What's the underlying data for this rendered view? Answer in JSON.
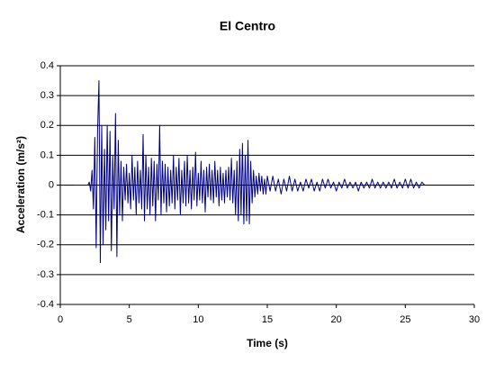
{
  "chart_data": {
    "type": "line",
    "title": "El Centro",
    "x_label": "Time (s)",
    "y_label": "Acceleration (m/s²)",
    "color": "#000080",
    "grid": true,
    "xlim": [
      0,
      30
    ],
    "xticks": [
      0,
      5,
      10,
      15,
      20,
      25,
      30
    ],
    "ylim": [
      -0.4,
      0.4
    ],
    "yticks": [
      0.4,
      0.3,
      0.2,
      0.1,
      0,
      -0.1,
      -0.2,
      -0.3,
      -0.4
    ],
    "x": [
      1,
      1.5,
      2,
      2.1,
      2.2,
      2.3,
      2.4,
      2.5,
      2.6,
      2.7,
      2.8,
      2.9,
      3.0,
      3.1,
      3.2,
      3.3,
      3.4,
      3.5,
      3.6,
      3.7,
      3.8,
      3.9,
      4.0,
      4.1,
      4.2,
      4.3,
      4.4,
      4.5,
      4.6,
      4.7,
      4.8,
      4.9,
      5.0,
      5.1,
      5.2,
      5.3,
      5.4,
      5.5,
      5.6,
      5.7,
      5.8,
      5.9,
      6.0,
      6.1,
      6.2,
      6.3,
      6.4,
      6.5,
      6.6,
      6.7,
      6.8,
      6.9,
      7.0,
      7.1,
      7.2,
      7.3,
      7.4,
      7.5,
      7.6,
      7.7,
      7.8,
      7.9,
      8.0,
      8.1,
      8.2,
      8.3,
      8.4,
      8.5,
      8.6,
      8.7,
      8.8,
      8.9,
      9.0,
      9.1,
      9.2,
      9.3,
      9.4,
      9.5,
      9.6,
      9.7,
      9.8,
      9.9,
      10.0,
      10.1,
      10.2,
      10.3,
      10.4,
      10.5,
      10.6,
      10.7,
      10.8,
      10.9,
      11.0,
      11.1,
      11.2,
      11.3,
      11.4,
      11.5,
      11.6,
      11.7,
      11.8,
      11.9,
      12.0,
      12.1,
      12.2,
      12.3,
      12.4,
      12.5,
      12.6,
      12.7,
      12.8,
      12.9,
      13.0,
      13.1,
      13.2,
      13.3,
      13.4,
      13.5,
      13.6,
      13.7,
      13.8,
      13.9,
      14.0,
      14.1,
      14.2,
      14.3,
      14.4,
      14.5,
      14.6,
      14.7,
      14.8,
      14.9,
      15.0,
      15.2,
      15.4,
      15.6,
      15.8,
      16.0,
      16.2,
      16.4,
      16.6,
      16.8,
      17.0,
      17.2,
      17.4,
      17.6,
      17.8,
      18.0,
      18.2,
      18.4,
      18.6,
      18.8,
      19.0,
      19.2,
      19.4,
      19.6,
      19.8,
      20.0,
      20.2,
      20.4,
      20.6,
      20.8,
      21.0,
      21.2,
      21.4,
      21.6,
      21.8,
      22.0,
      22.2,
      22.4,
      22.6,
      22.8,
      23.0,
      23.2,
      23.4,
      23.6,
      23.8,
      24.0,
      24.2,
      24.4,
      24.6,
      24.8,
      25.0,
      25.2,
      25.4,
      25.6,
      25.8,
      26.0,
      26.2,
      26.4,
      26.5
    ],
    "values": [
      0,
      0,
      0,
      0.01,
      -0.02,
      0.05,
      -0.08,
      0.16,
      -0.21,
      0.18,
      0.35,
      -0.26,
      0.2,
      -0.2,
      0.12,
      -0.15,
      0.2,
      -0.12,
      0.18,
      -0.22,
      0.1,
      -0.08,
      0.24,
      -0.24,
      0.15,
      -0.1,
      0.08,
      -0.12,
      0.06,
      -0.05,
      0.07,
      -0.06,
      0.04,
      -0.08,
      0.1,
      -0.05,
      0.06,
      -0.1,
      0.08,
      -0.06,
      0.05,
      -0.08,
      0.17,
      -0.12,
      0.1,
      -0.08,
      0.06,
      -0.1,
      0.09,
      -0.07,
      0.08,
      -0.12,
      0.07,
      -0.05,
      0.2,
      -0.1,
      0.08,
      -0.06,
      0.07,
      -0.09,
      0.06,
      -0.07,
      0.05,
      -0.06,
      0.1,
      -0.08,
      0.06,
      -0.05,
      0.09,
      -0.1,
      0.05,
      -0.06,
      0.08,
      -0.07,
      0.1,
      -0.06,
      0.05,
      -0.08,
      0.06,
      -0.05,
      0.11,
      -0.07,
      0.04,
      -0.05,
      0.08,
      -0.06,
      0.05,
      -0.09,
      0.06,
      -0.04,
      0.07,
      -0.05,
      0.05,
      -0.06,
      0.08,
      -0.04,
      0.05,
      -0.07,
      0.06,
      -0.05,
      0.04,
      -0.06,
      0.05,
      -0.04,
      0.06,
      -0.05,
      0.09,
      -0.06,
      0.05,
      -0.1,
      0.08,
      -0.12,
      0.12,
      -0.1,
      0.14,
      -0.13,
      0.1,
      -0.12,
      0.15,
      -0.13,
      0.08,
      -0.06,
      0.05,
      -0.04,
      0.03,
      -0.03,
      0.04,
      -0.02,
      0.03,
      -0.03,
      0.02,
      -0.03,
      0.03,
      -0.02,
      0.03,
      -0.02,
      0.02,
      -0.03,
      0.02,
      -0.02,
      0.03,
      -0.02,
      0.02,
      -0.02,
      0.01,
      -0.02,
      0.02,
      -0.01,
      0.02,
      -0.02,
      0.01,
      -0.02,
      0.02,
      -0.01,
      0.02,
      -0.01,
      0.01,
      -0.02,
      0.01,
      -0.01,
      0.02,
      -0.01,
      0.01,
      -0.01,
      0.01,
      -0.02,
      0.01,
      -0.01,
      0.01,
      -0.01,
      0.02,
      -0.01,
      0.01,
      -0.01,
      0.01,
      -0.01,
      0.01,
      -0.01,
      0.02,
      -0.01,
      0.01,
      -0.01,
      0.02,
      -0.01,
      0.02,
      -0.01,
      0.01,
      -0.01,
      0.01,
      0,
      0
    ]
  }
}
